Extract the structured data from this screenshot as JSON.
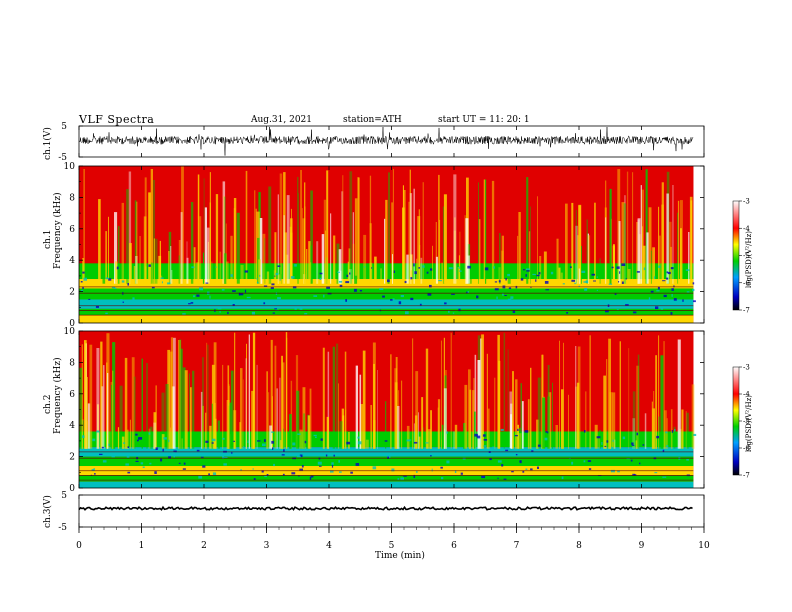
{
  "header": {
    "title": "VLF  Spectra",
    "date": "Aug.31, 2021",
    "station": "station=ATH",
    "start": "start  UT  =    11: 20: 1"
  },
  "chart_data": {
    "type": "heatmap",
    "x": {
      "label": "Time  (min)",
      "range": [
        0,
        10
      ],
      "ticks": [
        "0",
        "1",
        "2",
        "3",
        "4",
        "5",
        "6",
        "7",
        "8",
        "9",
        "10"
      ],
      "data_end": 9.83
    },
    "panels": [
      {
        "name": "ch.1(V)",
        "type": "line",
        "ylabel": "ch.1(V)",
        "yrange": [
          -5,
          5
        ],
        "yticks": [
          "5",
          "-5"
        ]
      },
      {
        "name": "ch.1",
        "type": "heatmap",
        "ylabel_top": "ch.1",
        "ylabel": "Frequency  (kHz)",
        "yrange": [
          0,
          10
        ],
        "yticks": [
          "10",
          "8",
          "6",
          "4",
          "2",
          "0"
        ],
        "colorbar": {
          "label": "log(PSD)(V²/Hz)",
          "range": [
            -7,
            -3
          ],
          "ticks": [
            "-3",
            "-4",
            "-5",
            "-6",
            "-7"
          ]
        }
      },
      {
        "name": "ch.2",
        "type": "heatmap",
        "ylabel_top": "ch.2",
        "ylabel": "Frequency  (kHz)",
        "yrange": [
          0,
          10
        ],
        "yticks": [
          "10",
          "8",
          "6",
          "4",
          "2",
          "0"
        ],
        "colorbar": {
          "label": "log(PSD)(V²/Hz)",
          "range": [
            -7,
            -3
          ],
          "ticks": [
            "-3",
            "-4",
            "-5",
            "-6",
            "-7"
          ]
        }
      },
      {
        "name": "ch.3(V)",
        "type": "line",
        "ylabel": "ch.3(V)",
        "yrange": [
          -5,
          5
        ],
        "yticks": [
          "5",
          "-5"
        ]
      }
    ],
    "colors": {
      "high": "#e00000",
      "mid_high": "#ffd700",
      "mid": "#00cc00",
      "mid_low": "#00bfbf",
      "low": "#0000c0",
      "floor": "#000000"
    }
  }
}
